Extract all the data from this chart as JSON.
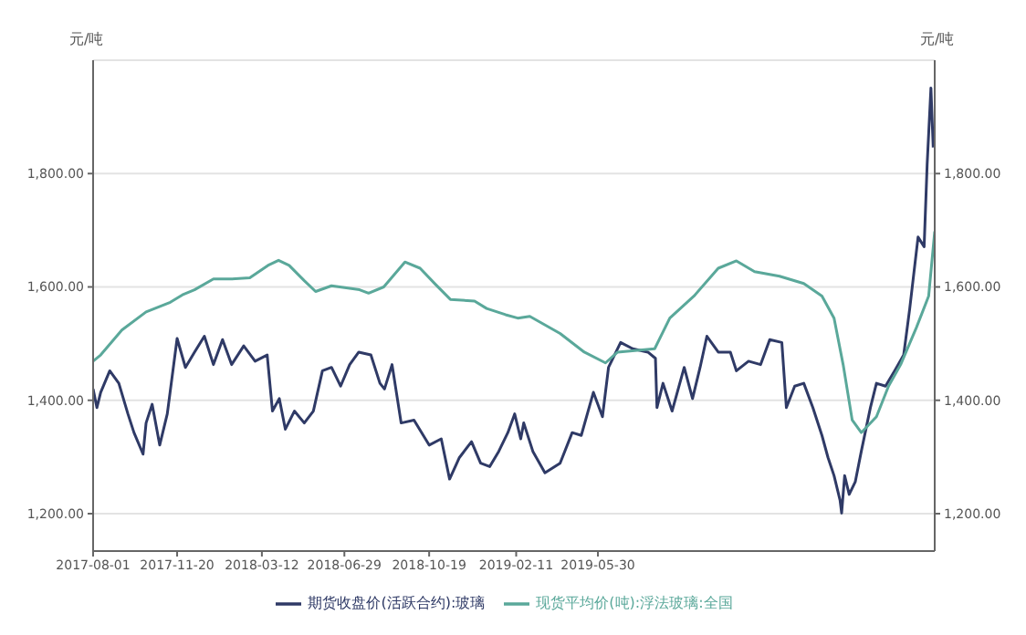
{
  "chart_data": {
    "type": "line",
    "ylabel": "元/吨",
    "y2label": "元/吨",
    "xlim": [
      "2017-08-01",
      "2020-08-17"
    ],
    "xticks": [
      "2017-08-01",
      "2017-11-20",
      "2018-03-12",
      "2018-06-29",
      "2018-10-19",
      "2019-02-11",
      "2019-05-30"
    ],
    "ylim": [
      1134,
      2000
    ],
    "yticks": [
      {
        "value": 1200,
        "label": "1,200.00"
      },
      {
        "value": 1400,
        "label": "1,400.00"
      },
      {
        "value": 1600,
        "label": "1,600.00"
      },
      {
        "value": 1800,
        "label": "1,800.00"
      }
    ],
    "y2lim": [
      1134,
      2000
    ],
    "y2ticks": [
      {
        "value": 1200,
        "label": "1,200.00"
      },
      {
        "value": 1400,
        "label": "1,400.00"
      },
      {
        "value": 1600,
        "label": "1,600.00"
      },
      {
        "value": 1800,
        "label": "1,800.00"
      }
    ],
    "grid": "y",
    "legend": "bottom",
    "line_style": "solid",
    "series": [
      {
        "name": "期货收盘价(活跃合约):玻璃",
        "color": "#2f3a66",
        "x": [
          "2017-08-01",
          "2017-08-06",
          "2017-08-11",
          "2017-08-23",
          "2017-09-04",
          "2017-09-16",
          "2017-09-24",
          "2017-10-06",
          "2017-10-10",
          "2017-10-18",
          "2017-10-28",
          "2017-11-07",
          "2017-11-20",
          "2017-12-01",
          "2017-12-13",
          "2017-12-26",
          "2018-01-07",
          "2018-01-19",
          "2018-01-31",
          "2018-02-16",
          "2018-03-03",
          "2018-03-19",
          "2018-03-26",
          "2018-04-04",
          "2018-04-12",
          "2018-04-24",
          "2018-05-07",
          "2018-05-19",
          "2018-05-31",
          "2018-06-12",
          "2018-06-24",
          "2018-07-06",
          "2018-07-18",
          "2018-08-03",
          "2018-08-15",
          "2018-08-21",
          "2018-08-31",
          "2018-09-12",
          "2018-09-29",
          "2018-10-19",
          "2018-11-04",
          "2018-11-15",
          "2018-11-28",
          "2018-12-14",
          "2018-12-26",
          "2019-01-07",
          "2019-01-19",
          "2019-01-31",
          "2019-02-09",
          "2019-02-17",
          "2019-02-21",
          "2019-03-05",
          "2019-03-21",
          "2019-04-10",
          "2019-04-26",
          "2019-05-08",
          "2019-05-24",
          "2019-06-05",
          "2019-06-13",
          "2019-06-29",
          "2019-07-15",
          "2019-08-04",
          "2019-08-14",
          "2019-08-16",
          "2019-08-24",
          "2019-09-05",
          "2019-09-21",
          "2019-10-02",
          "2019-10-12",
          "2019-10-21",
          "2019-11-05",
          "2019-11-21",
          "2019-11-29",
          "2019-12-15",
          "2019-12-31",
          "2020-01-12",
          "2020-01-28",
          "2020-02-03",
          "2020-02-14",
          "2020-02-26",
          "2020-03-09",
          "2020-03-21",
          "2020-03-29",
          "2020-04-06",
          "2020-04-14",
          "2020-04-16",
          "2020-04-20",
          "2020-04-26",
          "2020-05-04",
          "2020-05-12",
          "2020-05-24",
          "2020-06-01",
          "2020-06-13",
          "2020-06-25",
          "2020-07-07",
          "2020-07-15",
          "2020-07-26",
          "2020-08-03",
          "2020-08-07",
          "2020-08-12",
          "2020-08-15"
        ],
        "values": [
          1420,
          1387,
          1414,
          1452,
          1430,
          1376,
          1343,
          1305,
          1360,
          1393,
          1321,
          1376,
          1509,
          1458,
          1485,
          1513,
          1463,
          1507,
          1463,
          1496,
          1469,
          1480,
          1381,
          1403,
          1349,
          1381,
          1360,
          1381,
          1452,
          1458,
          1425,
          1463,
          1485,
          1480,
          1430,
          1420,
          1463,
          1360,
          1365,
          1321,
          1332,
          1261,
          1299,
          1327,
          1289,
          1283,
          1310,
          1343,
          1376,
          1332,
          1360,
          1310,
          1272,
          1289,
          1343,
          1338,
          1414,
          1371,
          1458,
          1502,
          1491,
          1485,
          1474,
          1387,
          1430,
          1381,
          1458,
          1403,
          1458,
          1513,
          1485,
          1485,
          1452,
          1469,
          1463,
          1507,
          1502,
          1387,
          1425,
          1430,
          1387,
          1338,
          1299,
          1267,
          1223,
          1201,
          1267,
          1234,
          1256,
          1310,
          1387,
          1430,
          1425,
          1452,
          1480,
          1562,
          1688,
          1671,
          1816,
          1951,
          1846
        ]
      },
      {
        "name": "现货平均价(吨):浮法玻璃:全国",
        "color": "#5aa89a",
        "x": [
          "2017-08-01",
          "2017-08-11",
          "2017-09-08",
          "2017-10-10",
          "2017-11-11",
          "2017-11-27",
          "2017-12-13",
          "2018-01-07",
          "2018-01-31",
          "2018-02-24",
          "2018-03-20",
          "2018-04-03",
          "2018-04-17",
          "2018-05-07",
          "2018-05-22",
          "2018-06-12",
          "2018-07-19",
          "2018-07-31",
          "2018-08-20",
          "2018-09-17",
          "2018-10-07",
          "2018-10-27",
          "2018-11-16",
          "2018-12-18",
          "2019-01-03",
          "2019-01-28",
          "2019-02-13",
          "2019-03-01",
          "2019-04-10",
          "2019-05-12",
          "2019-06-09",
          "2019-06-25",
          "2019-08-13",
          "2019-09-02",
          "2019-10-04",
          "2019-11-05",
          "2019-11-29",
          "2019-12-23",
          "2020-01-25",
          "2020-02-26",
          "2020-03-21",
          "2020-04-06",
          "2020-04-18",
          "2020-04-30",
          "2020-05-12",
          "2020-06-01",
          "2020-06-17",
          "2020-07-03",
          "2020-07-24",
          "2020-08-09",
          "2020-08-17"
        ],
        "values": [
          1469,
          1480,
          1524,
          1556,
          1573,
          1586,
          1595,
          1614,
          1614,
          1616,
          1638,
          1647,
          1638,
          1611,
          1592,
          1602,
          1595,
          1589,
          1600,
          1644,
          1633,
          1605,
          1578,
          1575,
          1562,
          1551,
          1545,
          1548,
          1518,
          1485,
          1466,
          1485,
          1491,
          1545,
          1584,
          1633,
          1646,
          1627,
          1619,
          1606,
          1584,
          1545,
          1463,
          1365,
          1343,
          1371,
          1425,
          1463,
          1529,
          1584,
          1698
        ]
      }
    ]
  }
}
